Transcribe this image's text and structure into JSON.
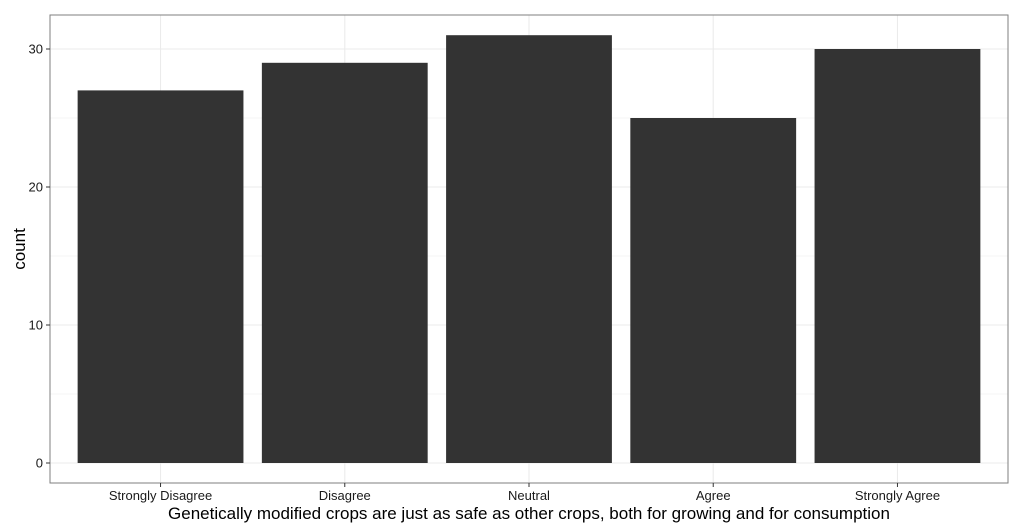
{
  "chart_data": {
    "type": "bar",
    "categories": [
      "Strongly Disagree",
      "Disagree",
      "Neutral",
      "Agree",
      "Strongly Agree"
    ],
    "values": [
      27,
      29,
      31,
      25,
      30
    ],
    "title": "",
    "xlabel": "Genetically modified crops are just as safe as other crops, both for growing and for consumption",
    "ylabel": "count",
    "ylim": [
      0,
      32.5
    ],
    "yticks": [
      0,
      10,
      20,
      30
    ],
    "yminor": [
      5,
      15,
      25
    ],
    "grid": true,
    "bar_color": "#333333",
    "grid_color": "#ebebeb",
    "panel_border_color": "#7f7f7f"
  }
}
